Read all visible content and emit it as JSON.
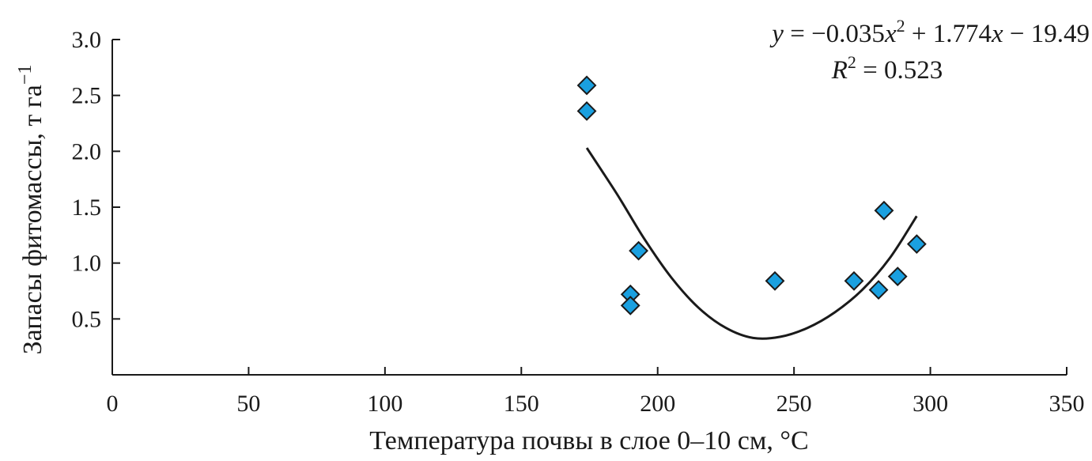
{
  "chart_data": {
    "type": "scatter",
    "xlabel": "Температура почвы в слое 0–10 см, °C",
    "ylabel": "Запасы фитомассы, т га",
    "ylabel_superscript": "−1",
    "xlim": [
      0,
      350
    ],
    "ylim": [
      0,
      3.0
    ],
    "x_ticks": [
      0,
      50,
      100,
      150,
      200,
      250,
      300,
      350
    ],
    "x_tick_labels": [
      "0",
      "50",
      "100",
      "150",
      "200",
      "250",
      "300",
      "350"
    ],
    "y_ticks": [
      0.5,
      1.0,
      1.5,
      2.0,
      2.5,
      3.0
    ],
    "y_tick_labels": [
      "0.5",
      "1.0",
      "1.5",
      "2.0",
      "2.5",
      "3.0"
    ],
    "grid": false,
    "marker_color": "#1aa0e0",
    "points": [
      {
        "x": 174,
        "y": 2.59
      },
      {
        "x": 174,
        "y": 2.36
      },
      {
        "x": 190,
        "y": 0.72
      },
      {
        "x": 190,
        "y": 0.62
      },
      {
        "x": 193,
        "y": 1.11
      },
      {
        "x": 243,
        "y": 0.84
      },
      {
        "x": 272,
        "y": 0.84
      },
      {
        "x": 281,
        "y": 0.76
      },
      {
        "x": 283,
        "y": 1.47
      },
      {
        "x": 288,
        "y": 0.88
      },
      {
        "x": 295,
        "y": 1.17
      }
    ],
    "trendline": {
      "type": "polynomial",
      "x_range": [
        174,
        295
      ],
      "curve_points": [
        {
          "x": 174,
          "y": 2.03
        },
        {
          "x": 185,
          "y": 1.62
        },
        {
          "x": 195,
          "y": 1.22
        },
        {
          "x": 205,
          "y": 0.87
        },
        {
          "x": 215,
          "y": 0.6
        },
        {
          "x": 225,
          "y": 0.42
        },
        {
          "x": 235,
          "y": 0.33
        },
        {
          "x": 245,
          "y": 0.34
        },
        {
          "x": 255,
          "y": 0.42
        },
        {
          "x": 265,
          "y": 0.56
        },
        {
          "x": 275,
          "y": 0.76
        },
        {
          "x": 285,
          "y": 1.04
        },
        {
          "x": 295,
          "y": 1.42
        }
      ],
      "equation_parts": {
        "y": "y",
        "eq1": " = −0.035",
        "x1": "x",
        "sup": "2",
        "eq2": " + 1.774",
        "x2": "x",
        "eq3": " − 19.49"
      },
      "r2_parts": {
        "r": "R",
        "sup": "2",
        "rest": " = 0.523"
      }
    }
  }
}
